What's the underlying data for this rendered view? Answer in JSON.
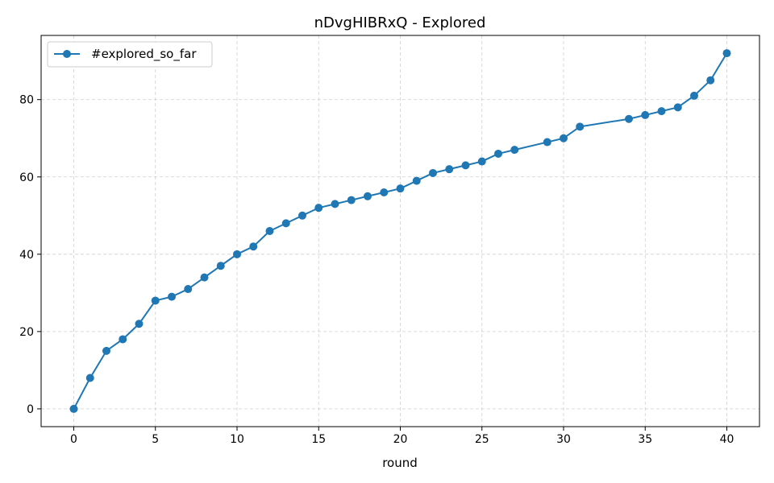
{
  "chart_data": {
    "type": "line",
    "title": "nDvgHIBRxQ - Explored",
    "xlabel": "round",
    "ylabel": "",
    "xlim": [
      -2,
      42
    ],
    "ylim": [
      -4.6,
      96.6
    ],
    "xticks": [
      0,
      5,
      10,
      15,
      20,
      25,
      30,
      35,
      40
    ],
    "yticks": [
      0,
      20,
      40,
      60,
      80
    ],
    "grid": true,
    "legend_position": "top-left",
    "series": [
      {
        "name": "#explored_so_far",
        "color": "#1f77b4",
        "marker": "circle",
        "x": [
          0,
          1,
          2,
          3,
          4,
          5,
          6,
          7,
          8,
          9,
          10,
          11,
          12,
          13,
          14,
          15,
          16,
          17,
          18,
          19,
          20,
          21,
          22,
          23,
          24,
          25,
          26,
          27,
          29,
          30,
          31,
          34,
          35,
          36,
          37,
          38,
          39,
          40
        ],
        "y": [
          0,
          8,
          15,
          18,
          22,
          28,
          29,
          31,
          34,
          37,
          40,
          42,
          46,
          48,
          50,
          52,
          53,
          54,
          55,
          56,
          57,
          59,
          61,
          62,
          63,
          64,
          66,
          67,
          69,
          70,
          73,
          75,
          76,
          77,
          78,
          81,
          85,
          92
        ]
      }
    ]
  }
}
